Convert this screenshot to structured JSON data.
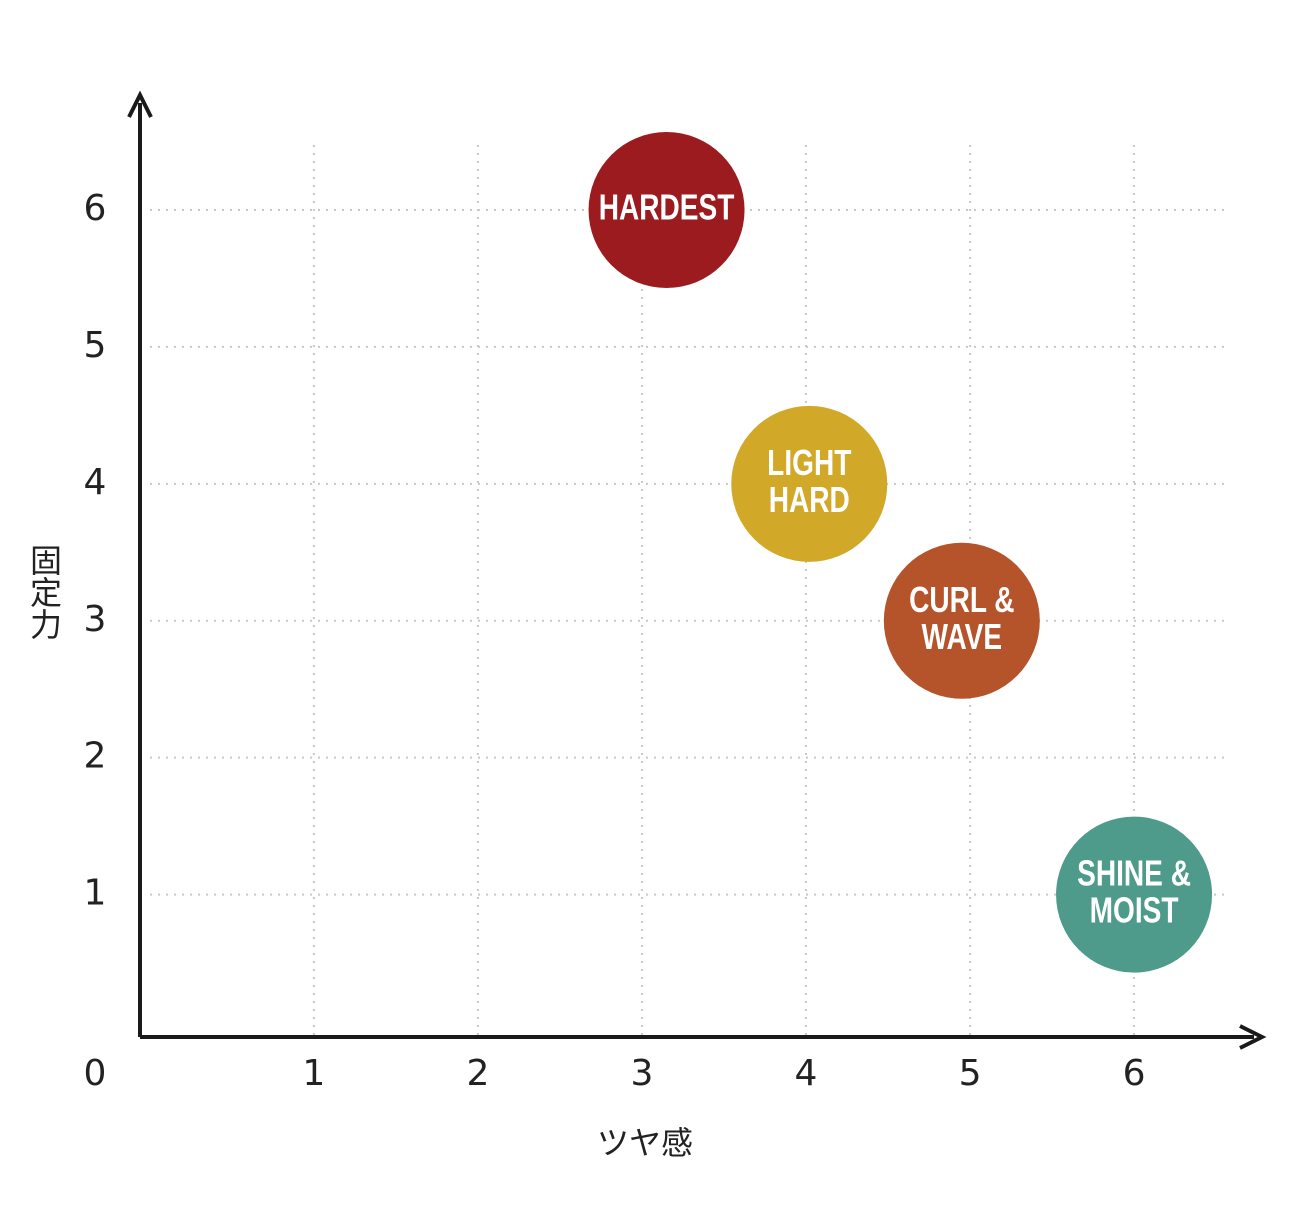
{
  "chart_data": {
    "type": "scatter",
    "x_label": "ツヤ感",
    "y_label": "固定力",
    "xlim": [
      -0.06,
      6.78
    ],
    "ylim": [
      -0.04,
      6.84
    ],
    "xticks": [
      0,
      1,
      2,
      3,
      4,
      5,
      6
    ],
    "yticks": [
      1,
      2,
      3,
      4,
      5,
      6
    ],
    "grid": true,
    "points": [
      {
        "label": [
          "HARDEST"
        ],
        "x": 3.15,
        "y": 6,
        "color": "#9b1b1f"
      },
      {
        "label": [
          "LIGHT",
          "HARD"
        ],
        "x": 4.02,
        "y": 4,
        "color": "#d1a827"
      },
      {
        "label": [
          "CURL &",
          "WAVE"
        ],
        "x": 4.95,
        "y": 3,
        "color": "#b5532a"
      },
      {
        "label": [
          "SHINE &",
          "MOIST"
        ],
        "x": 6,
        "y": 1,
        "color": "#4e9b8b"
      }
    ]
  }
}
